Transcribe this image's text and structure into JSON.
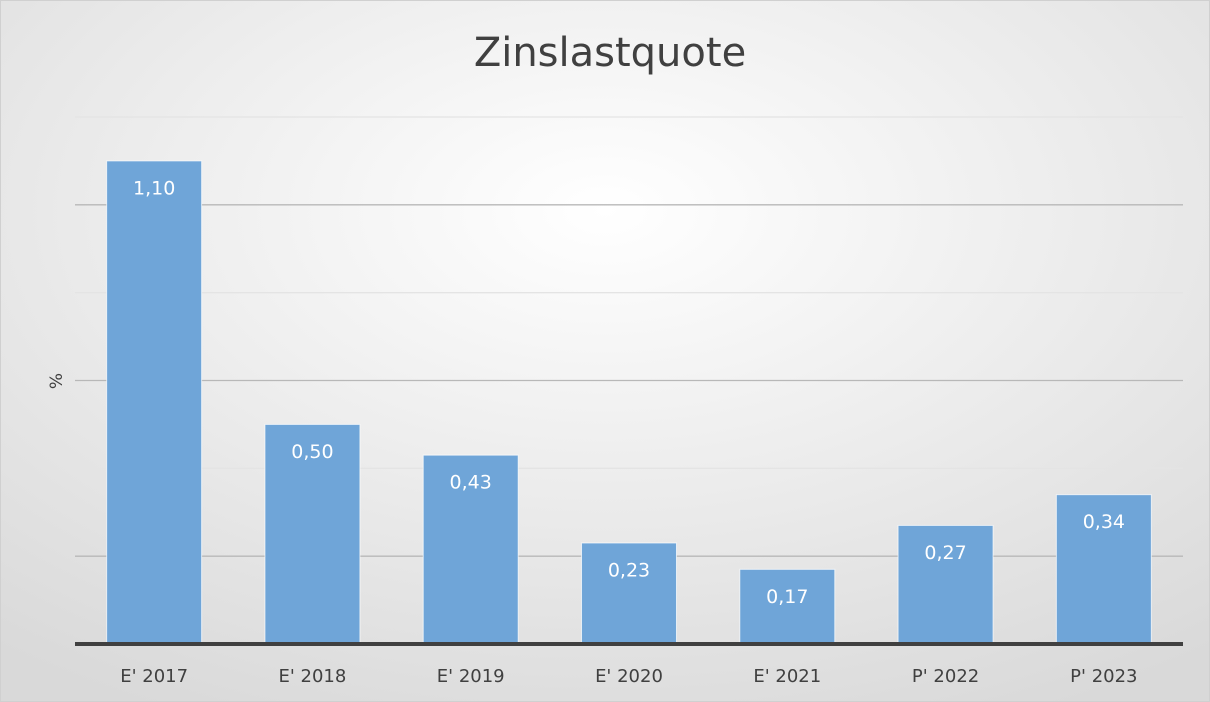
{
  "chart_data": {
    "type": "bar",
    "title": "Zinslastquote",
    "y_label": "%",
    "categories": [
      "E' 2017",
      "E' 2018",
      "E' 2019",
      "E' 2020",
      "E' 2021",
      "P' 2022",
      "P' 2023"
    ],
    "values": [
      1.1,
      0.5,
      0.43,
      0.23,
      0.17,
      0.27,
      0.34
    ],
    "value_labels": [
      "1,10",
      "0,50",
      "0,43",
      "0,23",
      "0,17",
      "0,27",
      "0,34"
    ],
    "color": "#6fa5d8",
    "ylim": [
      0,
      1.2
    ],
    "yticks": [
      0.2,
      0.4,
      0.6,
      0.8,
      1.0,
      1.2
    ],
    "grid": true
  }
}
